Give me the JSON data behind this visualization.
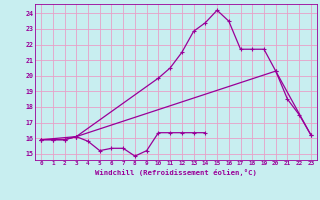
{
  "xlabel": "Windchill (Refroidissement éolien,°C)",
  "xlim": [
    -0.5,
    23.5
  ],
  "ylim": [
    14.6,
    24.6
  ],
  "background_color": "#c8eef0",
  "grid_color": "#e8a0c8",
  "line_color": "#990099",
  "line1_x": [
    0,
    1,
    2,
    3,
    4,
    5,
    6,
    7,
    8,
    9,
    10,
    11,
    12,
    13,
    14
  ],
  "line1_y": [
    15.9,
    15.9,
    15.9,
    16.1,
    15.8,
    15.2,
    15.35,
    15.35,
    14.85,
    15.2,
    16.35,
    16.35,
    16.35,
    16.35,
    16.35
  ],
  "line2_x": [
    0,
    1,
    2,
    3,
    10,
    11,
    12,
    13,
    14,
    15,
    16,
    17,
    18,
    19,
    20,
    21,
    22,
    23
  ],
  "line2_y": [
    15.9,
    15.9,
    15.9,
    16.1,
    19.85,
    20.5,
    21.5,
    22.85,
    23.4,
    24.2,
    23.5,
    21.7,
    21.7,
    21.7,
    20.3,
    18.5,
    17.5,
    16.2
  ],
  "line3_x": [
    0,
    3,
    20,
    23
  ],
  "line3_y": [
    15.9,
    16.1,
    20.3,
    16.2
  ],
  "yticks": [
    15,
    16,
    17,
    18,
    19,
    20,
    21,
    22,
    23,
    24
  ],
  "xticks": [
    0,
    1,
    2,
    3,
    4,
    5,
    6,
    7,
    8,
    9,
    10,
    11,
    12,
    13,
    14,
    15,
    16,
    17,
    18,
    19,
    20,
    21,
    22,
    23
  ]
}
